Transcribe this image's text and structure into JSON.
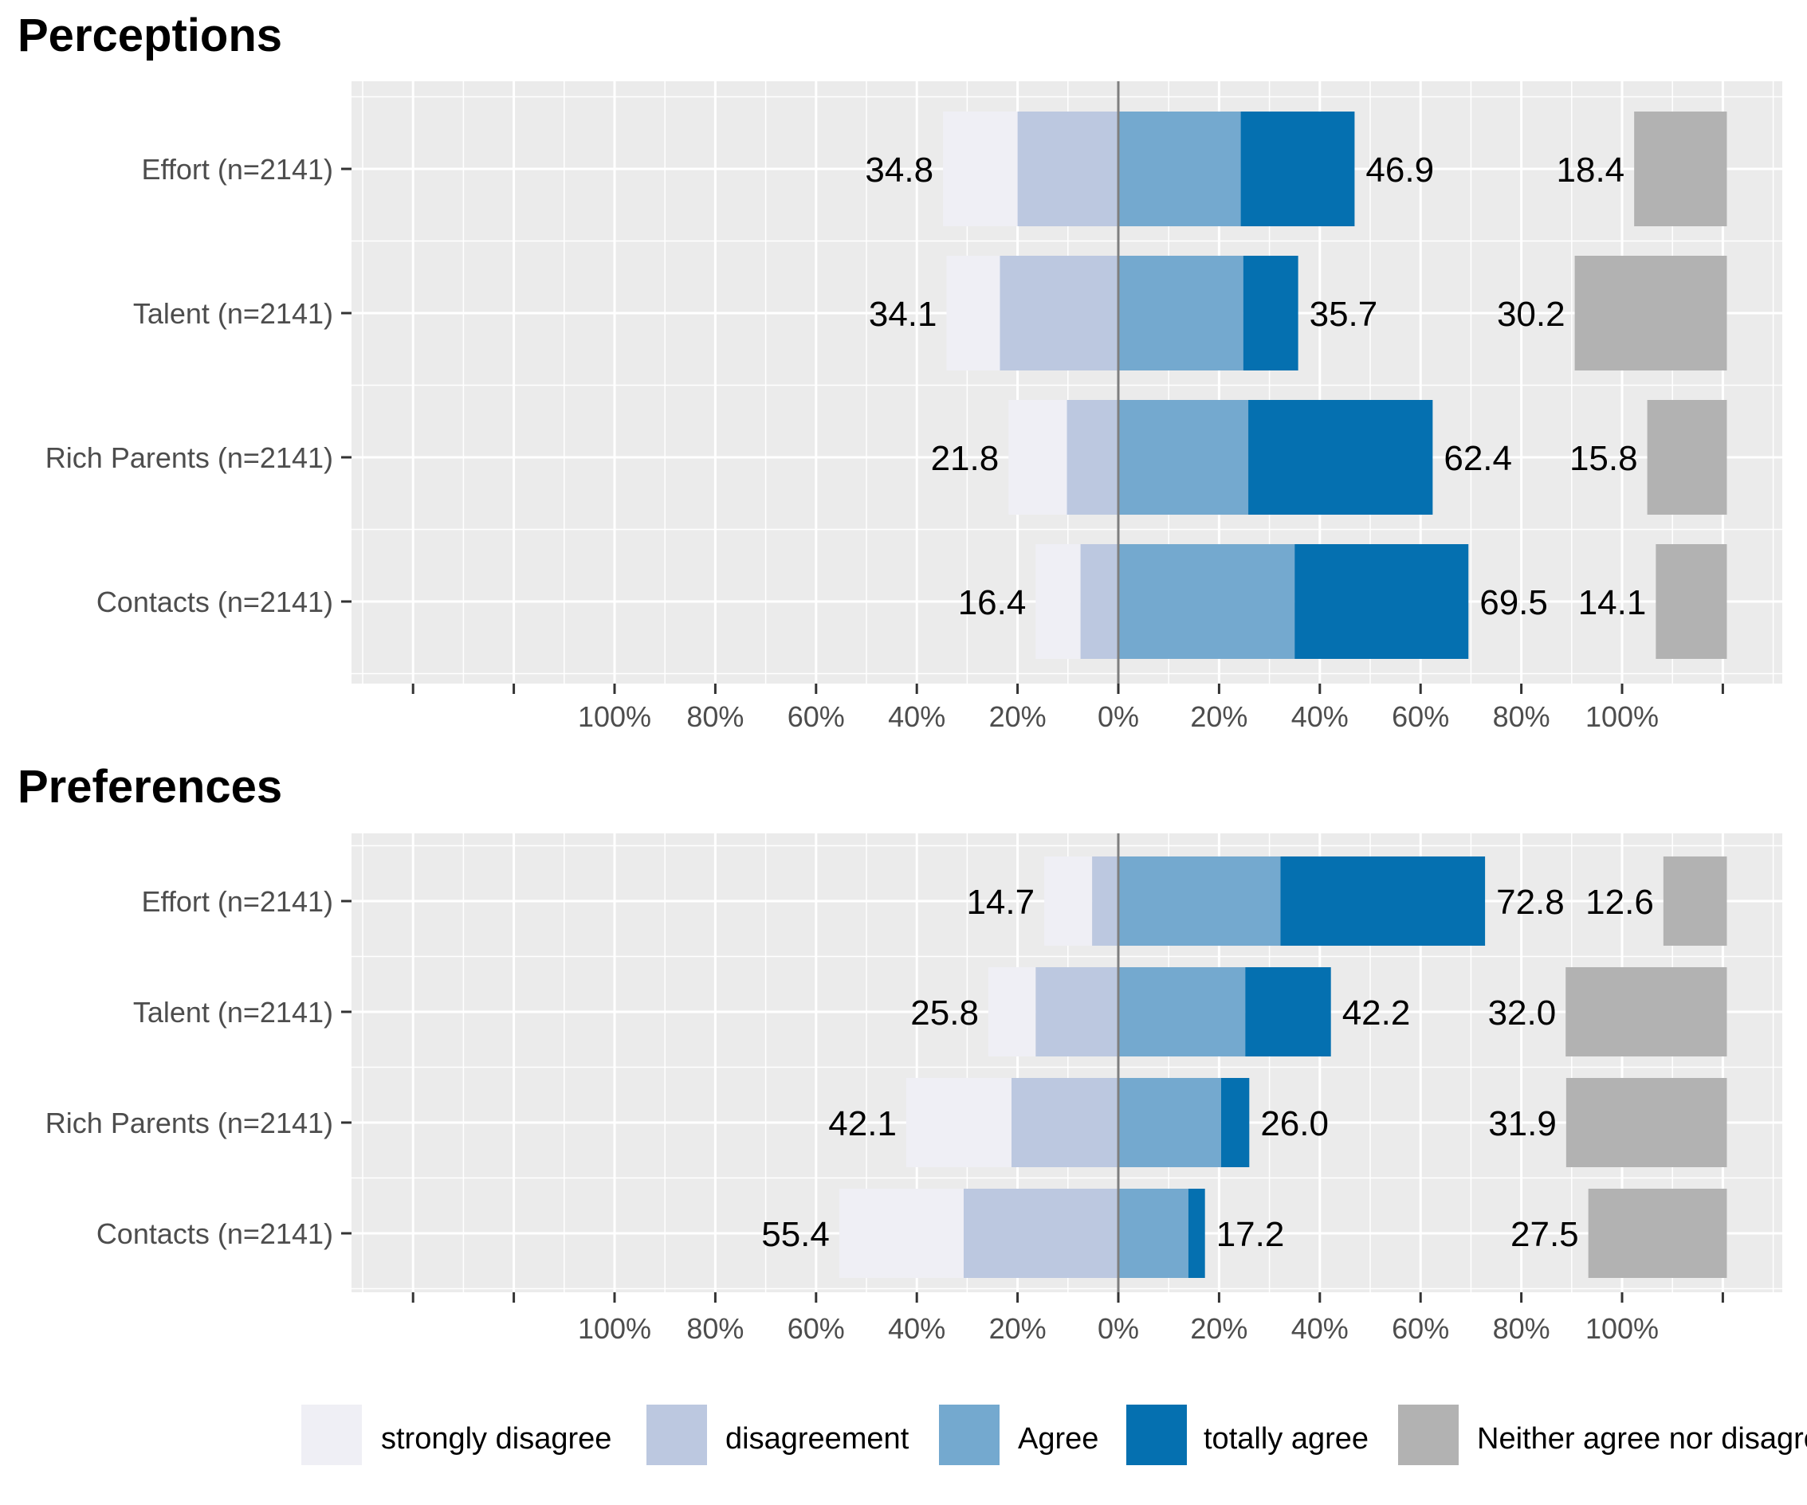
{
  "chart_data": [
    {
      "type": "bar",
      "title": "Perceptions",
      "categories": [
        "Effort (n=2141)",
        "Talent (n=2141)",
        "Rich Parents (n=2141)",
        "Contacts (n=2141)"
      ],
      "series": [
        {
          "name": "strongly disagree",
          "color": "#efeff5",
          "values": [
            14.8,
            10.6,
            11.6,
            8.9
          ]
        },
        {
          "name": "disagreement",
          "color": "#bcc8e0",
          "values": [
            20.0,
            23.5,
            10.2,
            7.5
          ]
        },
        {
          "name": "Agree",
          "color": "#74a9cf",
          "values": [
            24.3,
            24.8,
            25.8,
            35.0
          ]
        },
        {
          "name": "totally agree",
          "color": "#0570b0",
          "values": [
            22.6,
            10.9,
            36.6,
            34.5
          ]
        },
        {
          "name": "Neither agree nor disagree",
          "color": "#b2b2b2",
          "values": [
            18.4,
            30.2,
            15.8,
            14.1
          ]
        }
      ],
      "labels": {
        "disagree": [
          "34.8",
          "34.1",
          "21.8",
          "16.4"
        ],
        "agree": [
          "46.9",
          "35.7",
          "62.4",
          "69.5"
        ],
        "neutral": [
          "18.4",
          "30.2",
          "15.8",
          "14.1"
        ]
      },
      "x_tick_labels": [
        "100%",
        "80%",
        "60%",
        "40%",
        "20%",
        "0%",
        "20%",
        "40%",
        "60%",
        "80%",
        "100%"
      ],
      "x_tick_values": [
        -100,
        -80,
        -60,
        -40,
        -20,
        0,
        20,
        40,
        60,
        80,
        100
      ],
      "xlim": [
        -152,
        130
      ],
      "grid": true
    },
    {
      "type": "bar",
      "title": "Preferences",
      "categories": [
        "Effort (n=2141)",
        "Talent (n=2141)",
        "Rich Parents (n=2141)",
        "Contacts (n=2141)"
      ],
      "series": [
        {
          "name": "strongly disagree",
          "color": "#efeff5",
          "values": [
            9.5,
            9.4,
            20.9,
            24.7
          ]
        },
        {
          "name": "disagreement",
          "color": "#bcc8e0",
          "values": [
            5.2,
            16.4,
            21.2,
            30.7
          ]
        },
        {
          "name": "Agree",
          "color": "#74a9cf",
          "values": [
            32.2,
            25.2,
            20.4,
            13.9
          ]
        },
        {
          "name": "totally agree",
          "color": "#0570b0",
          "values": [
            40.6,
            17.0,
            5.6,
            3.3
          ]
        },
        {
          "name": "Neither agree nor disagree",
          "color": "#b2b2b2",
          "values": [
            12.6,
            32.0,
            31.9,
            27.5
          ]
        }
      ],
      "labels": {
        "disagree": [
          "14.7",
          "25.8",
          "42.1",
          "55.4"
        ],
        "agree": [
          "72.8",
          "42.2",
          "26.0",
          "17.2"
        ],
        "neutral": [
          "12.6",
          "32.0",
          "31.9",
          "27.5"
        ]
      },
      "x_tick_labels": [
        "100%",
        "80%",
        "60%",
        "40%",
        "20%",
        "0%",
        "20%",
        "40%",
        "60%",
        "80%",
        "100%"
      ],
      "x_tick_values": [
        -100,
        -80,
        -60,
        -40,
        -20,
        0,
        20,
        40,
        60,
        80,
        100
      ],
      "xlim": [
        -152,
        130
      ],
      "grid": true
    }
  ],
  "legend": {
    "position": "bottom",
    "items": [
      {
        "label": "strongly disagree",
        "color": "#efeff5"
      },
      {
        "label": "disagreement",
        "color": "#bcc8e0"
      },
      {
        "label": "Agree",
        "color": "#74a9cf"
      },
      {
        "label": "totally agree",
        "color": "#0570b0"
      },
      {
        "label": "Neither agree nor disagree",
        "color": "#b2b2b2"
      }
    ]
  },
  "colors": {
    "panel_background": "#ebebeb",
    "gridline": "#ffffff",
    "zero_line": "#7f7f7f",
    "axis_text": "#4d4d4d"
  }
}
